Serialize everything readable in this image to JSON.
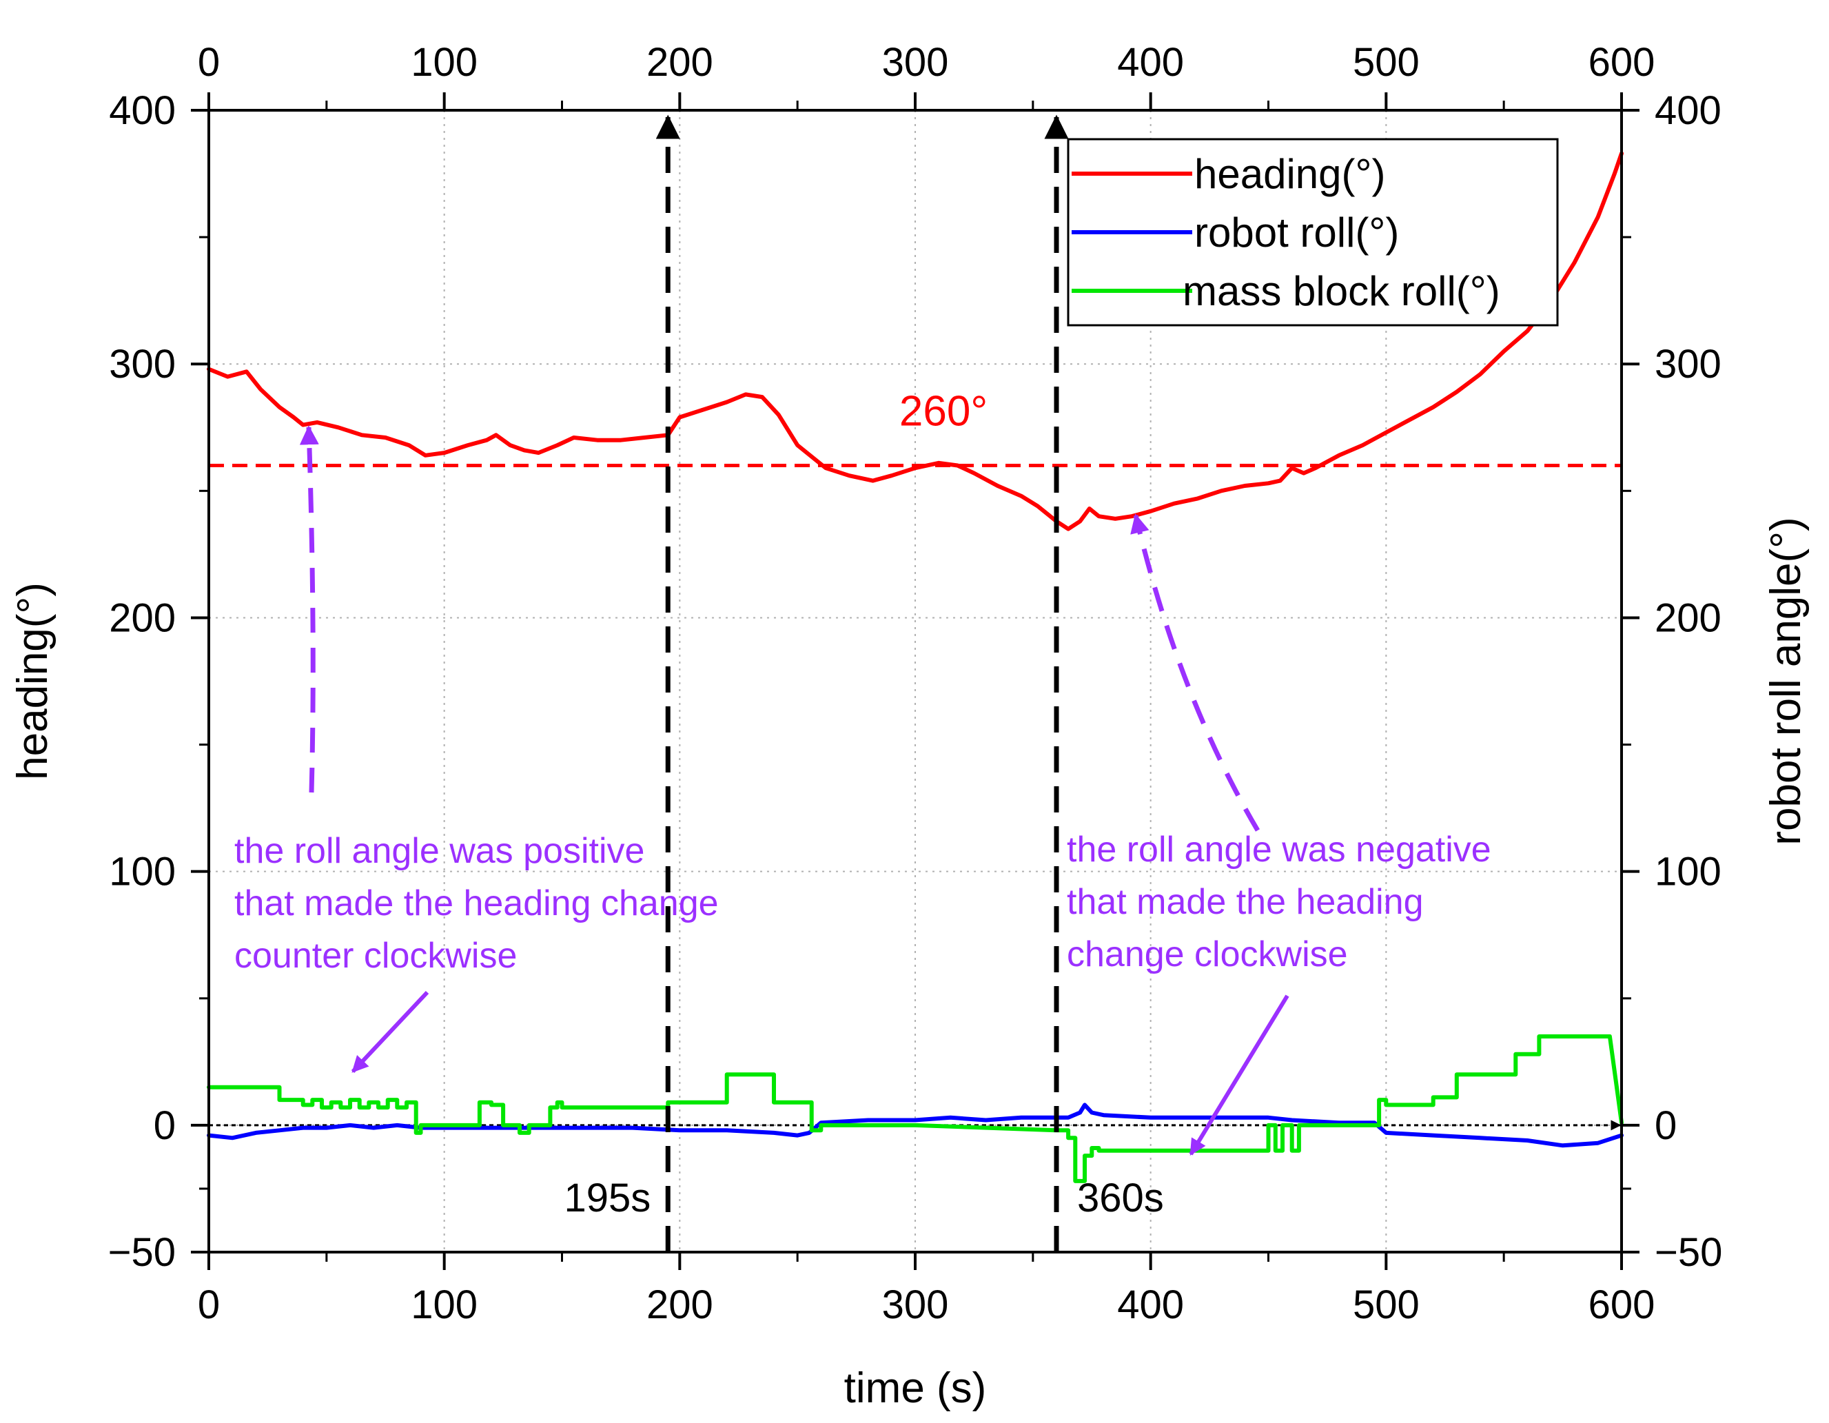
{
  "chart_data": {
    "type": "line",
    "xlabel": "time (s)",
    "ylabel_left": "heading(°)",
    "ylabel_right": "robot roll angle(°)",
    "xlim": [
      0,
      600
    ],
    "ylim": [
      -50,
      400
    ],
    "x_ticks": [
      0,
      100,
      200,
      300,
      400,
      500,
      600
    ],
    "x_tick_labels": [
      "0",
      "100",
      "200",
      "300",
      "400",
      "500",
      "600"
    ],
    "y_ticks": [
      -50,
      0,
      100,
      200,
      300,
      400
    ],
    "y_tick_labels": [
      "−50",
      "0",
      "100",
      "200",
      "300",
      "400"
    ],
    "grid": true,
    "legend_position": "top-right",
    "series": [
      {
        "name": "heading(°)",
        "color": "#ff0000",
        "points": [
          [
            0,
            298
          ],
          [
            8,
            295
          ],
          [
            16,
            297
          ],
          [
            22,
            290
          ],
          [
            30,
            283
          ],
          [
            36,
            279
          ],
          [
            40,
            276
          ],
          [
            46,
            277
          ],
          [
            55,
            275
          ],
          [
            65,
            272
          ],
          [
            75,
            271
          ],
          [
            85,
            268
          ],
          [
            92,
            264
          ],
          [
            100,
            265
          ],
          [
            110,
            268
          ],
          [
            118,
            270
          ],
          [
            122,
            272
          ],
          [
            128,
            268
          ],
          [
            134,
            266
          ],
          [
            140,
            265
          ],
          [
            148,
            268
          ],
          [
            155,
            271
          ],
          [
            165,
            270
          ],
          [
            175,
            270
          ],
          [
            185,
            271
          ],
          [
            195,
            272
          ],
          [
            200,
            279
          ],
          [
            210,
            282
          ],
          [
            220,
            285
          ],
          [
            228,
            288
          ],
          [
            235,
            287
          ],
          [
            242,
            280
          ],
          [
            250,
            268
          ],
          [
            262,
            259
          ],
          [
            272,
            256
          ],
          [
            282,
            254
          ],
          [
            290,
            256
          ],
          [
            300,
            259
          ],
          [
            310,
            261
          ],
          [
            318,
            260
          ],
          [
            325,
            257
          ],
          [
            335,
            252
          ],
          [
            345,
            248
          ],
          [
            352,
            244
          ],
          [
            360,
            238
          ],
          [
            365,
            235
          ],
          [
            370,
            238
          ],
          [
            374,
            243
          ],
          [
            378,
            240
          ],
          [
            385,
            239
          ],
          [
            392,
            240
          ],
          [
            400,
            242
          ],
          [
            410,
            245
          ],
          [
            420,
            247
          ],
          [
            430,
            250
          ],
          [
            440,
            252
          ],
          [
            450,
            253
          ],
          [
            455,
            254
          ],
          [
            460,
            259
          ],
          [
            465,
            257
          ],
          [
            470,
            259
          ],
          [
            480,
            264
          ],
          [
            490,
            268
          ],
          [
            500,
            273
          ],
          [
            510,
            278
          ],
          [
            520,
            283
          ],
          [
            530,
            289
          ],
          [
            540,
            296
          ],
          [
            550,
            305
          ],
          [
            560,
            313
          ],
          [
            570,
            325
          ],
          [
            580,
            340
          ],
          [
            590,
            358
          ],
          [
            597,
            375
          ],
          [
            600,
            383
          ]
        ]
      },
      {
        "name": "robot roll(°)",
        "color": "#0000ff",
        "points": [
          [
            0,
            -4
          ],
          [
            10,
            -5
          ],
          [
            20,
            -3
          ],
          [
            30,
            -2
          ],
          [
            40,
            -1
          ],
          [
            50,
            -1
          ],
          [
            60,
            0
          ],
          [
            70,
            -1
          ],
          [
            80,
            0
          ],
          [
            90,
            -1
          ],
          [
            100,
            -1
          ],
          [
            120,
            -1
          ],
          [
            140,
            -1
          ],
          [
            160,
            -1
          ],
          [
            180,
            -1
          ],
          [
            200,
            -2
          ],
          [
            220,
            -2
          ],
          [
            240,
            -3
          ],
          [
            250,
            -4
          ],
          [
            255,
            -3
          ],
          [
            260,
            1
          ],
          [
            280,
            2
          ],
          [
            300,
            2
          ],
          [
            315,
            3
          ],
          [
            330,
            2
          ],
          [
            345,
            3
          ],
          [
            360,
            3
          ],
          [
            365,
            3
          ],
          [
            370,
            5
          ],
          [
            372,
            8
          ],
          [
            375,
            5
          ],
          [
            380,
            4
          ],
          [
            400,
            3
          ],
          [
            420,
            3
          ],
          [
            440,
            3
          ],
          [
            450,
            3
          ],
          [
            460,
            2
          ],
          [
            480,
            1
          ],
          [
            495,
            1
          ],
          [
            500,
            -3
          ],
          [
            520,
            -4
          ],
          [
            540,
            -5
          ],
          [
            560,
            -6
          ],
          [
            575,
            -8
          ],
          [
            590,
            -7
          ],
          [
            600,
            -4
          ]
        ]
      },
      {
        "name": "mass block roll(°)",
        "color": "#00e600",
        "points": [
          [
            0,
            15
          ],
          [
            30,
            15
          ],
          [
            30,
            10
          ],
          [
            40,
            10
          ],
          [
            40,
            8
          ],
          [
            44,
            8
          ],
          [
            44,
            10
          ],
          [
            48,
            10
          ],
          [
            48,
            7
          ],
          [
            52,
            7
          ],
          [
            52,
            9
          ],
          [
            56,
            9
          ],
          [
            56,
            7
          ],
          [
            60,
            7
          ],
          [
            60,
            10
          ],
          [
            64,
            10
          ],
          [
            64,
            7
          ],
          [
            68,
            7
          ],
          [
            68,
            9
          ],
          [
            72,
            9
          ],
          [
            72,
            7
          ],
          [
            76,
            7
          ],
          [
            76,
            10
          ],
          [
            80,
            10
          ],
          [
            80,
            7
          ],
          [
            84,
            7
          ],
          [
            84,
            9
          ],
          [
            88,
            9
          ],
          [
            88,
            -3
          ],
          [
            90,
            -3
          ],
          [
            90,
            0
          ],
          [
            115,
            0
          ],
          [
            115,
            9
          ],
          [
            120,
            9
          ],
          [
            120,
            8
          ],
          [
            125,
            8
          ],
          [
            125,
            0
          ],
          [
            132,
            0
          ],
          [
            132,
            -3
          ],
          [
            136,
            -3
          ],
          [
            136,
            0
          ],
          [
            145,
            0
          ],
          [
            145,
            7
          ],
          [
            148,
            7
          ],
          [
            148,
            9
          ],
          [
            150,
            9
          ],
          [
            150,
            7
          ],
          [
            195,
            7
          ],
          [
            195,
            9
          ],
          [
            220,
            9
          ],
          [
            220,
            20
          ],
          [
            240,
            20
          ],
          [
            240,
            9
          ],
          [
            256,
            9
          ],
          [
            256,
            -2
          ],
          [
            260,
            -2
          ],
          [
            260,
            0
          ],
          [
            300,
            0
          ],
          [
            360,
            -2
          ],
          [
            365,
            -2
          ],
          [
            365,
            -5
          ],
          [
            368,
            -5
          ],
          [
            368,
            -22
          ],
          [
            372,
            -22
          ],
          [
            372,
            -12
          ],
          [
            375,
            -12
          ],
          [
            375,
            -9
          ],
          [
            378,
            -9
          ],
          [
            378,
            -10
          ],
          [
            450,
            -10
          ],
          [
            450,
            0
          ],
          [
            453,
            0
          ],
          [
            453,
            -10
          ],
          [
            456,
            -10
          ],
          [
            456,
            0
          ],
          [
            460,
            0
          ],
          [
            460,
            -10
          ],
          [
            463,
            -10
          ],
          [
            463,
            0
          ],
          [
            497,
            0
          ],
          [
            497,
            10
          ],
          [
            500,
            10
          ],
          [
            500,
            8
          ],
          [
            520,
            8
          ],
          [
            520,
            11
          ],
          [
            530,
            11
          ],
          [
            530,
            20
          ],
          [
            555,
            20
          ],
          [
            555,
            28
          ],
          [
            565,
            28
          ],
          [
            565,
            35
          ],
          [
            595,
            35
          ],
          [
            600,
            1
          ]
        ]
      }
    ],
    "reference_line": {
      "y": 260,
      "label": "260°",
      "color": "#ff0000"
    },
    "vertical_markers": [
      {
        "x": 195,
        "label": "195s"
      },
      {
        "x": 360,
        "label": "360s"
      }
    ],
    "annotations": [
      {
        "lines": [
          "the roll angle was positive",
          "that made the heading change",
          "counter clockwise"
        ]
      },
      {
        "lines": [
          "the roll angle was negative",
          "that made the heading",
          "change clockwise"
        ]
      }
    ],
    "annotation_color": "#9b30ff"
  }
}
